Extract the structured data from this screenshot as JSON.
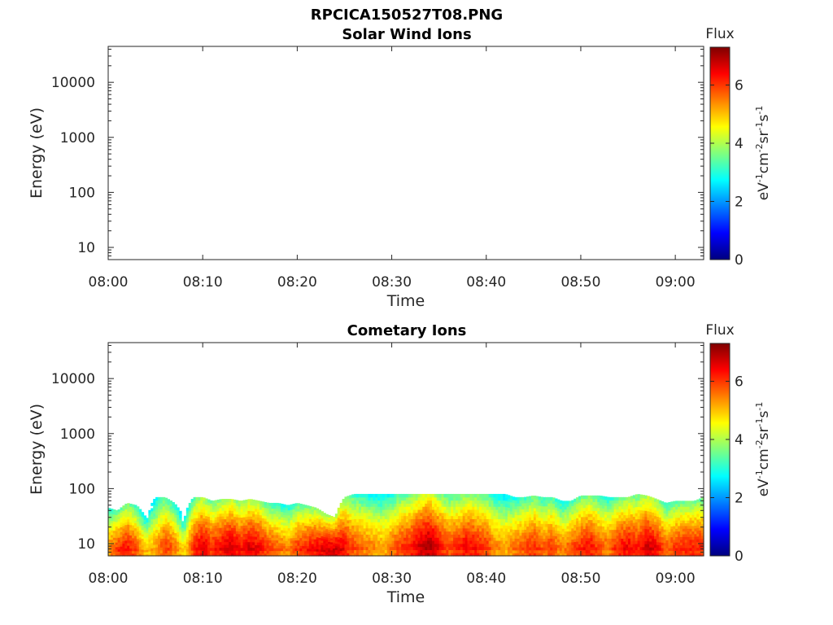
{
  "figure_title": "RPCICA150527T08.PNG",
  "colors": {
    "axis": "#262626",
    "colormap": [
      "#00007f",
      "#0000ff",
      "#007fff",
      "#00ffff",
      "#7fff7f",
      "#ffff00",
      "#ff7f00",
      "#ff0000",
      "#7f0000"
    ]
  },
  "chart_data": [
    {
      "type": "heatmap",
      "title": "Solar Wind Ions",
      "xlabel": "Time",
      "ylabel": "Energy (eV)",
      "x_range": [
        "08:00",
        "09:03"
      ],
      "x_ticks": [
        "08:00",
        "08:10",
        "08:20",
        "08:30",
        "08:40",
        "08:50",
        "09:00"
      ],
      "y_scale": "log",
      "y_range": [
        6,
        45000
      ],
      "y_ticks": [
        "10",
        "100",
        "1000",
        "10000"
      ],
      "colorbar": {
        "label": "Flux",
        "units": "eV⁻¹cm⁻²sr⁻¹s⁻¹",
        "range": [
          0,
          7.3
        ],
        "ticks": [
          "0",
          "2",
          "4",
          "6"
        ]
      },
      "cells": []
    },
    {
      "type": "heatmap",
      "title": "Cometary Ions",
      "xlabel": "Time",
      "ylabel": "Energy (eV)",
      "x_range": [
        "08:00",
        "09:03"
      ],
      "x_ticks": [
        "08:00",
        "08:10",
        "08:20",
        "08:30",
        "08:40",
        "08:50",
        "09:00"
      ],
      "y_scale": "log",
      "y_range": [
        6,
        45000
      ],
      "y_ticks": [
        "10",
        "100",
        "1000",
        "10000"
      ],
      "colorbar": {
        "label": "Flux",
        "units": "eV⁻¹cm⁻²sr⁻¹s⁻¹",
        "range": [
          0,
          7.3
        ],
        "ticks": [
          "0",
          "2",
          "4",
          "6"
        ]
      },
      "flux_profile": {
        "energy_range": [
          6,
          80
        ],
        "time_minutes": [
          0,
          1,
          2,
          3,
          4,
          5,
          6,
          7,
          8,
          9,
          10,
          11,
          12,
          13,
          14,
          15,
          16,
          17,
          18,
          19,
          20,
          21,
          22,
          23,
          24,
          25,
          26,
          27,
          28,
          29,
          30,
          31,
          32,
          33,
          34,
          35,
          36,
          37,
          38,
          39,
          40,
          41,
          42,
          43,
          44,
          45,
          46,
          47,
          48,
          49,
          50,
          51,
          52,
          53,
          54,
          55,
          56,
          57,
          58,
          59,
          60,
          61,
          62,
          63
        ],
        "peak_flux": [
          5.6,
          6.2,
          6.5,
          6.0,
          5.2,
          5.4,
          6.2,
          5.8,
          5.0,
          6.2,
          6.8,
          6.3,
          6.6,
          6.9,
          6.5,
          6.8,
          6.6,
          6.1,
          5.9,
          5.6,
          6.2,
          6.4,
          6.6,
          6.8,
          6.9,
          6.6,
          6.0,
          5.8,
          5.6,
          5.4,
          5.8,
          6.2,
          6.4,
          6.9,
          7.2,
          6.6,
          6.1,
          6.3,
          6.6,
          6.4,
          6.2,
          5.6,
          5.4,
          5.8,
          6.0,
          6.3,
          5.9,
          6.2,
          5.6,
          6.0,
          6.3,
          6.5,
          6.0,
          5.8,
          6.4,
          6.6,
          6.3,
          6.9,
          6.6,
          5.9,
          6.2,
          6.4,
          6.4,
          6.3
        ],
        "top_energy": [
          45,
          40,
          55,
          50,
          30,
          70,
          70,
          55,
          30,
          70,
          70,
          60,
          65,
          65,
          60,
          65,
          60,
          55,
          55,
          50,
          55,
          50,
          45,
          35,
          30,
          70,
          80,
          80,
          80,
          80,
          80,
          80,
          80,
          80,
          80,
          80,
          80,
          80,
          80,
          80,
          80,
          80,
          80,
          70,
          70,
          75,
          70,
          70,
          60,
          60,
          75,
          75,
          75,
          70,
          70,
          70,
          80,
          75,
          65,
          55,
          60,
          60,
          60,
          70
        ]
      }
    }
  ]
}
